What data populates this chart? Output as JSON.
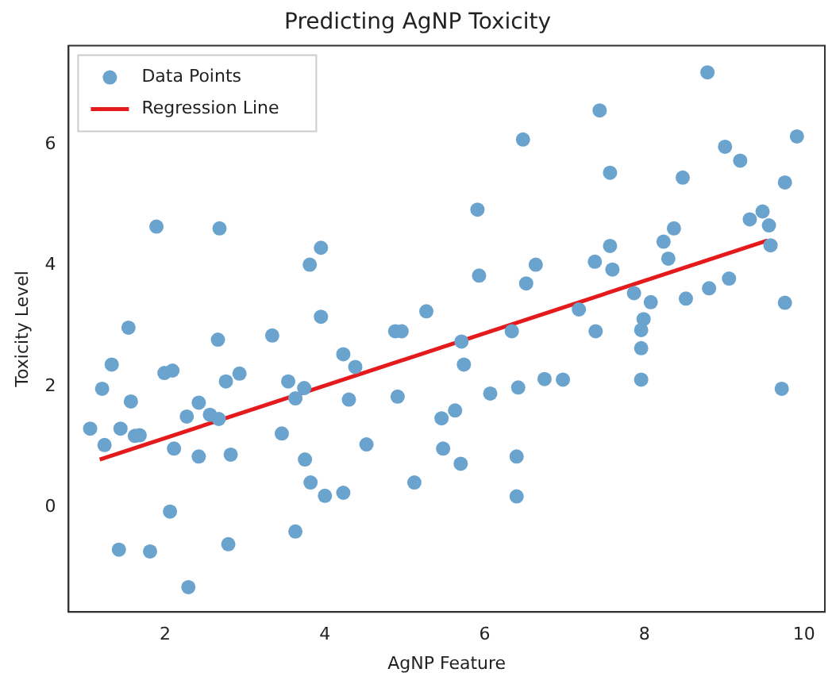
{
  "chart_data": {
    "type": "scatter",
    "title": "Predicting AgNP Toxicity",
    "xlabel": "AgNP Feature",
    "ylabel": "Toxicity Level",
    "xlim": [
      0.79,
      10.26
    ],
    "ylim": [
      -1.73,
      7.63
    ],
    "xticks": [
      2,
      4,
      6,
      8,
      10
    ],
    "yticks": [
      0,
      2,
      4,
      6
    ],
    "grid": false,
    "legend": "top left",
    "series": [
      {
        "name": "Data Points",
        "type": "scatter",
        "marker": "circle",
        "color": "#6aa3cd",
        "x": [
          1.89,
          2.68,
          3.95,
          3.81,
          1.54,
          2.66,
          3.34,
          3.95,
          4.88,
          4.96,
          5.27,
          8.79,
          7.44,
          6.48,
          9.91,
          9.01,
          9.2,
          7.57,
          8.48,
          9.76,
          5.91,
          9.32,
          9.48,
          9.56,
          9.58,
          8.37,
          8.24,
          8.3,
          7.57,
          7.38,
          7.6,
          6.64,
          5.93,
          6.52,
          7.87,
          8.08,
          8.52,
          8.81,
          9.06,
          9.76,
          7.18,
          6.34,
          7.39,
          7.99,
          7.96,
          5.71,
          7.96,
          5.74,
          6.07,
          6.42,
          6.75,
          6.98,
          7.96,
          9.72,
          5.63,
          5.7,
          6.4,
          6.4,
          4.23,
          4.38,
          1.33,
          1.99,
          2.09,
          2.93,
          2.76,
          3.54,
          3.74,
          3.63,
          4.3,
          4.91,
          1.21,
          1.57,
          2.42,
          2.27,
          2.56,
          2.67,
          1.06,
          1.44,
          1.62,
          1.68,
          1.24,
          2.11,
          2.42,
          2.82,
          3.46,
          4.52,
          3.75,
          3.82,
          4.0,
          4.23,
          5.12,
          5.46,
          5.48,
          2.06,
          1.42,
          1.81,
          2.79,
          3.63,
          2.29
        ],
        "values": [
          4.64,
          4.61,
          4.29,
          4.01,
          2.97,
          2.77,
          2.84,
          3.15,
          2.91,
          2.91,
          3.24,
          7.19,
          6.56,
          6.08,
          6.13,
          5.96,
          5.73,
          5.53,
          5.45,
          5.37,
          4.92,
          4.76,
          4.89,
          4.66,
          4.33,
          4.61,
          4.39,
          4.11,
          4.32,
          4.06,
          3.93,
          4.01,
          3.83,
          3.7,
          3.54,
          3.39,
          3.45,
          3.62,
          3.78,
          3.38,
          3.27,
          2.91,
          2.91,
          3.11,
          2.93,
          2.74,
          2.63,
          2.36,
          1.88,
          1.98,
          2.12,
          2.11,
          2.11,
          1.96,
          1.6,
          0.72,
          0.84,
          0.18,
          2.53,
          2.32,
          2.36,
          2.22,
          2.26,
          2.21,
          2.08,
          2.08,
          1.97,
          1.8,
          1.78,
          1.83,
          1.96,
          1.75,
          1.73,
          1.5,
          1.53,
          1.46,
          1.3,
          1.3,
          1.18,
          1.19,
          1.03,
          0.97,
          0.84,
          0.87,
          1.22,
          1.04,
          0.79,
          0.41,
          0.19,
          0.24,
          0.41,
          1.47,
          0.97,
          -0.07,
          -0.7,
          -0.73,
          -0.61,
          -0.4,
          -1.32
        ]
      },
      {
        "name": "Regression Line",
        "type": "line",
        "color": "#e41a1c",
        "marker": "none",
        "line_style": "solid",
        "x": [
          1.18,
          9.54
        ],
        "values": [
          0.79,
          4.41
        ]
      }
    ]
  }
}
